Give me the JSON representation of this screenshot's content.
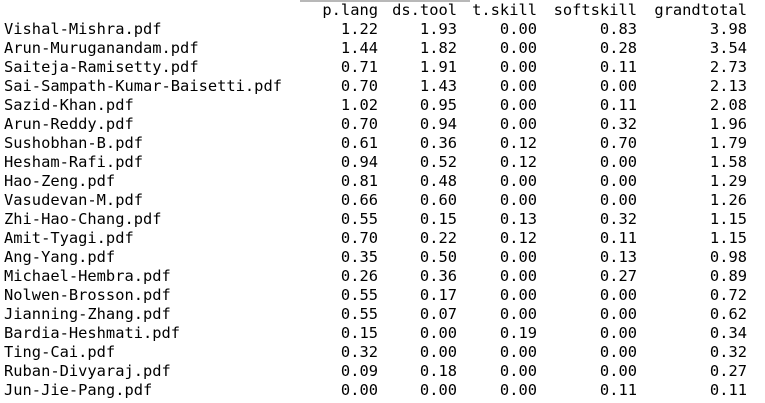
{
  "table": {
    "headers": [
      "",
      "p.lang",
      "ds.tool",
      "t.skill",
      "softskill",
      "grandtotal"
    ],
    "rows": [
      [
        "Vishal-Mishra.pdf",
        "1.22",
        "1.93",
        "0.00",
        "0.83",
        "3.98"
      ],
      [
        "Arun-Muruganandam.pdf",
        "1.44",
        "1.82",
        "0.00",
        "0.28",
        "3.54"
      ],
      [
        "Saiteja-Ramisetty.pdf",
        "0.71",
        "1.91",
        "0.00",
        "0.11",
        "2.73"
      ],
      [
        "Sai-Sampath-Kumar-Baisetti.pdf",
        "0.70",
        "1.43",
        "0.00",
        "0.00",
        "2.13"
      ],
      [
        "Sazid-Khan.pdf",
        "1.02",
        "0.95",
        "0.00",
        "0.11",
        "2.08"
      ],
      [
        "Arun-Reddy.pdf",
        "0.70",
        "0.94",
        "0.00",
        "0.32",
        "1.96"
      ],
      [
        "Sushobhan-B.pdf",
        "0.61",
        "0.36",
        "0.12",
        "0.70",
        "1.79"
      ],
      [
        "Hesham-Rafi.pdf",
        "0.94",
        "0.52",
        "0.12",
        "0.00",
        "1.58"
      ],
      [
        "Hao-Zeng.pdf",
        "0.81",
        "0.48",
        "0.00",
        "0.00",
        "1.29"
      ],
      [
        "Vasudevan-M.pdf",
        "0.66",
        "0.60",
        "0.00",
        "0.00",
        "1.26"
      ],
      [
        "Zhi-Hao-Chang.pdf",
        "0.55",
        "0.15",
        "0.13",
        "0.32",
        "1.15"
      ],
      [
        "Amit-Tyagi.pdf",
        "0.70",
        "0.22",
        "0.12",
        "0.11",
        "1.15"
      ],
      [
        "Ang-Yang.pdf",
        "0.35",
        "0.50",
        "0.00",
        "0.13",
        "0.98"
      ],
      [
        "Michael-Hembra.pdf",
        "0.26",
        "0.36",
        "0.00",
        "0.27",
        "0.89"
      ],
      [
        "Nolwen-Brosson.pdf",
        "0.55",
        "0.17",
        "0.00",
        "0.00",
        "0.72"
      ],
      [
        "Jianning-Zhang.pdf",
        "0.55",
        "0.07",
        "0.00",
        "0.00",
        "0.62"
      ],
      [
        "Bardia-Heshmati.pdf",
        "0.15",
        "0.00",
        "0.19",
        "0.00",
        "0.34"
      ],
      [
        "Ting-Cai.pdf",
        "0.32",
        "0.00",
        "0.00",
        "0.00",
        "0.32"
      ],
      [
        "Ruban-Divyaraj.pdf",
        "0.09",
        "0.18",
        "0.00",
        "0.00",
        "0.27"
      ],
      [
        "Jun-Jie-Pang.pdf",
        "0.00",
        "0.00",
        "0.00",
        "0.11",
        "0.11"
      ]
    ]
  }
}
